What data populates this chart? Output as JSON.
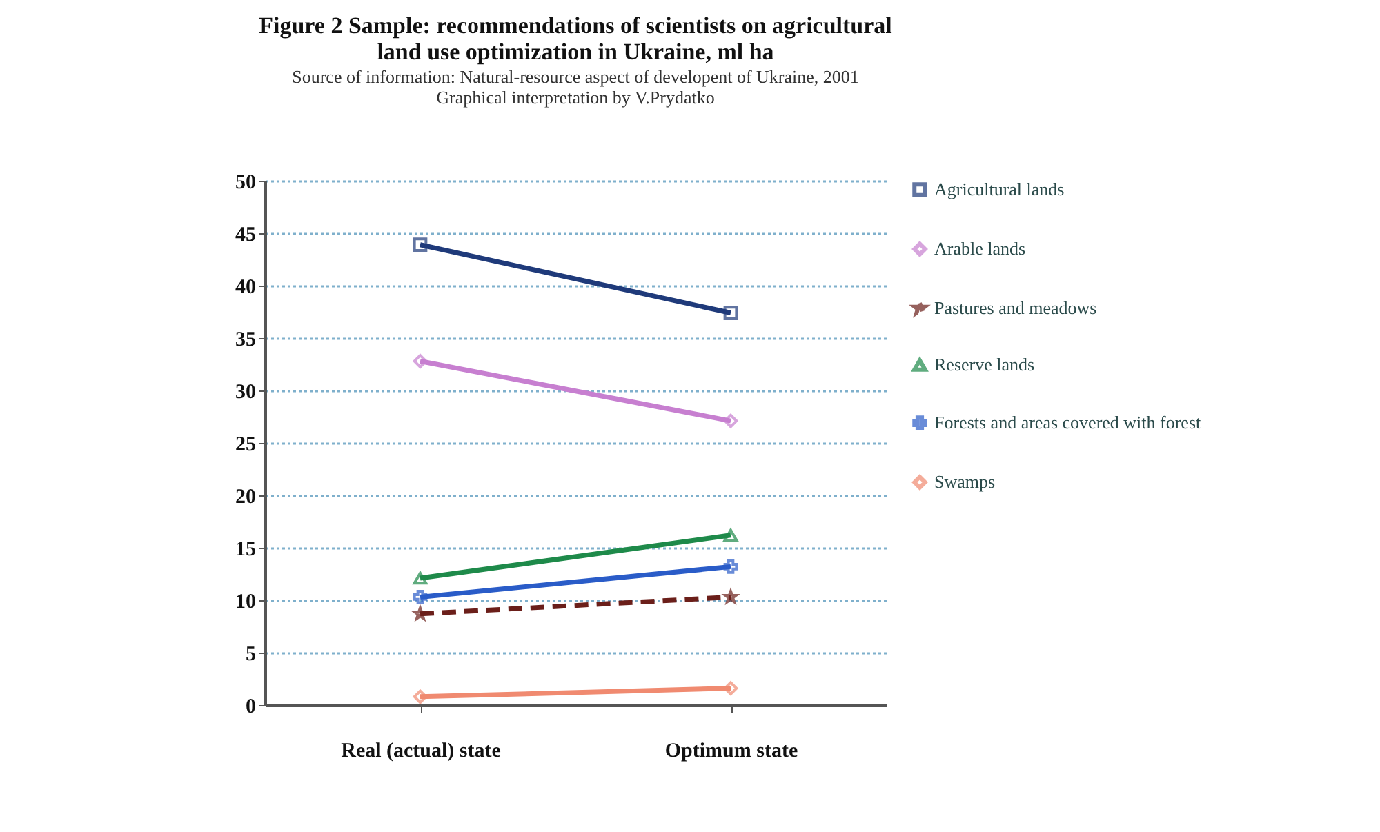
{
  "chart_data": {
    "type": "line",
    "title": "Figure 2 Sample: recommendations of scientists on agricultural land use optimization in Ukraine, ml ha",
    "subtitle": "Source of information: Natural-resource aspect of developent of Ukraine, 2001",
    "annotations": [
      "Graphical interpretation by V.Prydatko"
    ],
    "categories": [
      "Real (actual) state",
      "Optimum state"
    ],
    "series": [
      {
        "name": "Agricultural lands",
        "color": "#1f3a7a",
        "marker": "square",
        "values": [
          43.9,
          37.4
        ]
      },
      {
        "name": "Arable lands",
        "color": "#c77fd0",
        "marker": "diamond",
        "values": [
          32.8,
          27.1
        ]
      },
      {
        "name": "Pastures and meadows",
        "color": "#6b1f1a",
        "marker": "star",
        "line_style": "dashed",
        "values": [
          8.7,
          10.3
        ]
      },
      {
        "name": "Reserve lands",
        "color": "#1e8a4a",
        "marker": "triangle",
        "values": [
          12.1,
          16.2
        ]
      },
      {
        "name": "Forests and areas covered with forest",
        "color": "#2a5cc8",
        "marker": "cross",
        "values": [
          10.3,
          13.2
        ]
      },
      {
        "name": "Swamps",
        "color": "#f08a70",
        "marker": "diamond",
        "values": [
          0.8,
          1.6
        ]
      }
    ],
    "ylim": [
      0,
      50
    ],
    "yticks": [
      0,
      5,
      10,
      15,
      20,
      25,
      30,
      35,
      40,
      45,
      50
    ],
    "grid": "y",
    "legend": "right",
    "line_style": "solid"
  }
}
